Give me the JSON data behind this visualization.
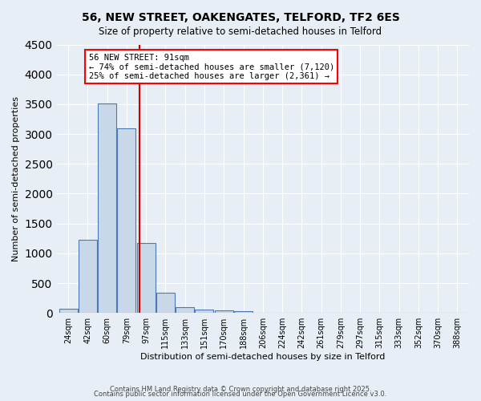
{
  "title": "56, NEW STREET, OAKENGATES, TELFORD, TF2 6ES",
  "subtitle": "Size of property relative to semi-detached houses in Telford",
  "xlabel": "Distribution of semi-detached houses by size in Telford",
  "ylabel": "Number of semi-detached properties",
  "bins": [
    "24sqm",
    "42sqm",
    "60sqm",
    "79sqm",
    "97sqm",
    "115sqm",
    "133sqm",
    "151sqm",
    "170sqm",
    "188sqm",
    "206sqm",
    "224sqm",
    "242sqm",
    "261sqm",
    "279sqm",
    "297sqm",
    "315sqm",
    "333sqm",
    "352sqm",
    "370sqm",
    "388sqm"
  ],
  "values": [
    75,
    1230,
    3510,
    3100,
    1170,
    340,
    100,
    60,
    40,
    30,
    0,
    0,
    0,
    0,
    0,
    0,
    0,
    0,
    0,
    0,
    0
  ],
  "property_sqm": 91,
  "annotation_title": "56 NEW STREET: 91sqm",
  "annotation_line1": "← 74% of semi-detached houses are smaller (7,120)",
  "annotation_line2": "25% of semi-detached houses are larger (2,361) →",
  "bar_color": "#c8d8e8",
  "bar_edge_color": "#4a7ab5",
  "vline_color": "#cc0000",
  "background_color": "#e8eef5",
  "grid_color": "#ffffff",
  "ylim": [
    0,
    4500
  ],
  "footer1": "Contains HM Land Registry data © Crown copyright and database right 2025.",
  "footer2": "Contains public sector information licensed under the Open Government Licence v3.0."
}
